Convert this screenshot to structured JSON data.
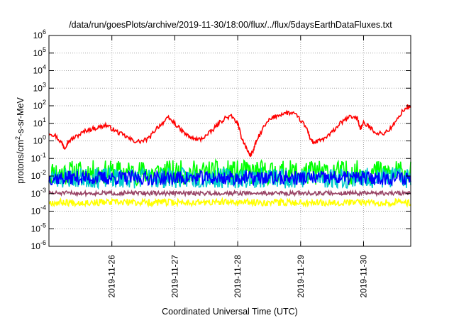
{
  "chart_data": {
    "type": "line",
    "title": "/data/run/goesPlots/archive/2019-11-30/18:00/flux/../flux/5daysEarthDataFluxes.txt",
    "xlabel": "Coordinated Universal Time (UTC)",
    "ylabel": {
      "base": "protons/cm",
      "sup": "2",
      "rest": "-s-sr-MeV"
    },
    "scale": "log",
    "ylim": [
      1e-06,
      1000000.0
    ],
    "xlim_days": [
      0,
      5.75
    ],
    "grid": true,
    "y_ticks": [
      {
        "exp": "-6"
      },
      {
        "exp": "-5"
      },
      {
        "exp": "-4"
      },
      {
        "exp": "-3"
      },
      {
        "exp": "-2"
      },
      {
        "exp": "-1"
      },
      {
        "exp": "0"
      },
      {
        "exp": "1"
      },
      {
        "exp": "2"
      },
      {
        "exp": "3"
      },
      {
        "exp": "4"
      },
      {
        "exp": "5"
      },
      {
        "exp": "6"
      }
    ],
    "x_ticks": [
      {
        "label": "2019-11-26",
        "day": 1
      },
      {
        "label": "2019-11-27",
        "day": 2
      },
      {
        "label": "2019-11-28",
        "day": 3
      },
      {
        "label": "2019-11-29",
        "day": 4
      },
      {
        "label": "2019-11-30",
        "day": 5
      }
    ],
    "series": [
      {
        "color": "#ff0000",
        "points": [
          [
            0.0,
            3
          ],
          [
            0.1,
            2
          ],
          [
            0.2,
            0.8
          ],
          [
            0.25,
            0.4
          ],
          [
            0.3,
            0.9
          ],
          [
            0.4,
            1.5
          ],
          [
            0.5,
            2.5
          ],
          [
            0.6,
            4
          ],
          [
            0.7,
            5
          ],
          [
            0.8,
            6
          ],
          [
            0.9,
            8
          ],
          [
            1.0,
            5
          ],
          [
            1.1,
            3
          ],
          [
            1.2,
            2
          ],
          [
            1.3,
            1.2
          ],
          [
            1.4,
            0.9
          ],
          [
            1.5,
            1.0
          ],
          [
            1.6,
            1.5
          ],
          [
            1.7,
            5
          ],
          [
            1.8,
            10
          ],
          [
            1.9,
            20
          ],
          [
            2.0,
            10
          ],
          [
            2.1,
            4
          ],
          [
            2.2,
            2
          ],
          [
            2.3,
            1.3
          ],
          [
            2.4,
            1.2
          ],
          [
            2.5,
            2
          ],
          [
            2.6,
            4
          ],
          [
            2.7,
            10
          ],
          [
            2.8,
            20
          ],
          [
            2.9,
            25
          ],
          [
            3.0,
            10
          ],
          [
            3.05,
            2
          ],
          [
            3.1,
            0.8
          ],
          [
            3.15,
            0.3
          ],
          [
            3.2,
            0.15
          ],
          [
            3.25,
            0.3
          ],
          [
            3.3,
            1
          ],
          [
            3.4,
            5
          ],
          [
            3.5,
            15
          ],
          [
            3.6,
            25
          ],
          [
            3.7,
            35
          ],
          [
            3.8,
            40
          ],
          [
            3.9,
            35
          ],
          [
            4.0,
            15
          ],
          [
            4.1,
            5
          ],
          [
            4.15,
            1.5
          ],
          [
            4.2,
            0.8
          ],
          [
            4.3,
            1.0
          ],
          [
            4.4,
            1.5
          ],
          [
            4.5,
            3
          ],
          [
            4.6,
            8
          ],
          [
            4.7,
            15
          ],
          [
            4.8,
            25
          ],
          [
            4.9,
            20
          ],
          [
            4.95,
            5
          ],
          [
            5.0,
            10
          ],
          [
            5.1,
            6
          ],
          [
            5.2,
            3
          ],
          [
            5.3,
            2.5
          ],
          [
            5.4,
            4
          ],
          [
            5.5,
            10
          ],
          [
            5.6,
            40
          ],
          [
            5.7,
            90
          ],
          [
            5.75,
            80
          ]
        ]
      },
      {
        "color": "#00ff00",
        "band": [
          0.003,
          0.08
        ],
        "seed": 11
      },
      {
        "color": "#00cccc",
        "band": [
          0.002,
          0.03
        ],
        "seed": 23
      },
      {
        "color": "#0000ff",
        "band": [
          0.003,
          0.02
        ],
        "seed": 37
      },
      {
        "color": "#994466",
        "band": [
          0.0008,
          0.0014
        ],
        "seed": 51
      },
      {
        "color": "#ffff00",
        "band": [
          0.0002,
          0.0005
        ],
        "seed": 67
      }
    ]
  }
}
